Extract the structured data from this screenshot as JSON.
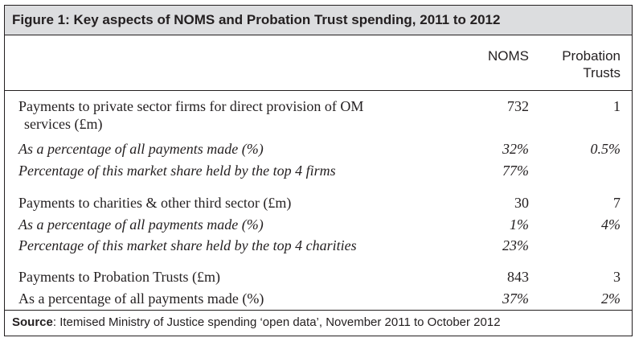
{
  "figure": {
    "title": "Figure 1: Key aspects of NOMS and Probation Trust spending, 2011 to 2012",
    "columns": {
      "noms": "NOMS",
      "probation_line1": "Probation",
      "probation_line2": "Trusts"
    },
    "rows": [
      {
        "label": "Payments to private sector firms for direct provision of OM",
        "noms": "732",
        "probation": "1"
      },
      {
        "label": "services (£m)",
        "noms": "",
        "probation": ""
      },
      {
        "label": "As a percentage of all payments made (%)",
        "noms": "32%",
        "probation": "0.5%"
      },
      {
        "label": "Percentage of this market share held by the top 4 firms",
        "noms": "77%",
        "probation": ""
      },
      {
        "label": "Payments to charities & other third sector (£m)",
        "noms": "30",
        "probation": "7"
      },
      {
        "label": "As a percentage of all payments made (%)",
        "noms": "1%",
        "probation": "4%"
      },
      {
        "label": "Percentage of this market share held by the top 4 charities",
        "noms": "23%",
        "probation": ""
      },
      {
        "label": "Payments to Probation Trusts (£m)",
        "noms": "843",
        "probation": "3"
      },
      {
        "label": "As a percentage of all payments made (%)",
        "noms": "37%",
        "probation": "2%"
      }
    ],
    "source_label": "Source",
    "source_text": ": Itemised Ministry of Justice spending ‘open data’, November 2011 to October 2012",
    "colors": {
      "title_background": "#dcdddf",
      "text": "#231f20",
      "border": "#231f20"
    }
  }
}
